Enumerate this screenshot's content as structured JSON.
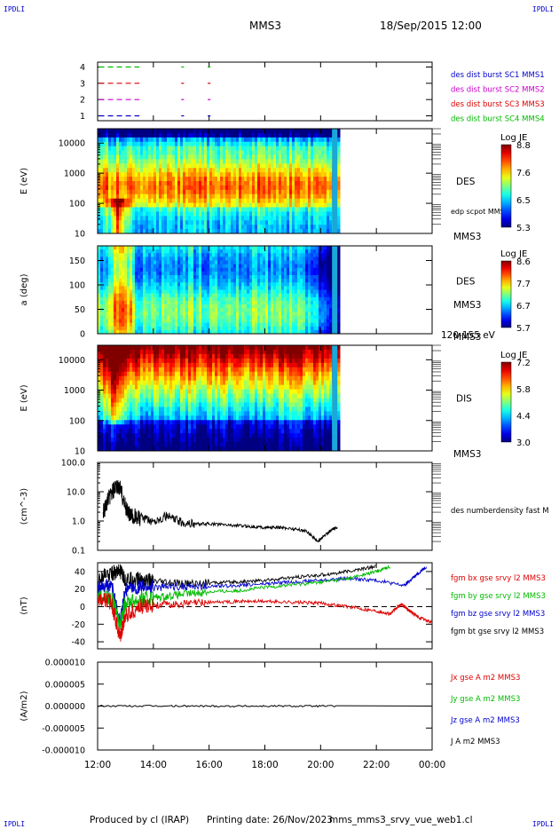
{
  "header": {
    "corner_label": "IPDLI",
    "spacecraft": "MMS3",
    "datetime": "18/Sep/2015 12:00"
  },
  "footer": {
    "produced_by": "Produced by cl (IRAP)",
    "printing_date": "Printing date: 26/Nov/2023",
    "file_name": "mms_mms3_srvy_vue_web1.cl"
  },
  "x_axis": {
    "ticks": [
      "12:00",
      "14:00",
      "16:00",
      "18:00",
      "20:00",
      "22:00",
      "00:00"
    ],
    "range_hours": [
      12,
      24
    ]
  },
  "chart_data": [
    {
      "type": "line",
      "id": "burst",
      "yticks": [
        "4",
        "3",
        "2",
        "1"
      ],
      "ylim": [
        0.7,
        4.3
      ],
      "legend": [
        {
          "label": "des dist burst SC1 MMS1",
          "color": "#0000cc"
        },
        {
          "label": "des dist burst SC2 MMS2",
          "color": "#cc00cc"
        },
        {
          "label": "des dist burst SC3 MMS3",
          "color": "#dd0000"
        },
        {
          "label": "des dist burst SC4 MMS4",
          "color": "#00bb00"
        }
      ],
      "series": [
        {
          "level": 4,
          "color": "#00bb00",
          "intervals": [
            [
              12.05,
              13.5
            ],
            [
              15.0,
              15.1
            ],
            [
              15.95,
              16.05
            ]
          ]
        },
        {
          "level": 3,
          "color": "#dd0000",
          "intervals": [
            [
              12.05,
              13.5
            ],
            [
              15.0,
              15.1
            ],
            [
              15.95,
              16.05
            ]
          ]
        },
        {
          "level": 2,
          "color": "#cc00cc",
          "intervals": [
            [
              12.05,
              13.5
            ],
            [
              15.0,
              15.1
            ],
            [
              15.95,
              16.05
            ]
          ]
        },
        {
          "level": 1,
          "color": "#0000cc",
          "intervals": [
            [
              12.05,
              13.5
            ],
            [
              15.0,
              15.1
            ],
            [
              15.95,
              16.05
            ]
          ]
        }
      ]
    },
    {
      "type": "heatmap",
      "id": "des_energy",
      "ylabel": "E (eV)",
      "yscale": "log",
      "ylim": [
        10,
        30000
      ],
      "yticks": [
        "10000",
        "1000",
        "100",
        "10"
      ],
      "ytick_values": [
        10000,
        1000,
        100,
        10
      ],
      "species": "DES",
      "right_label": "MMS3",
      "overlay_label": "edp scpot MMS3",
      "colorbar": {
        "title": "Log JE",
        "min": 5.3,
        "max": 8.8,
        "ticks": [
          "8.8",
          "7.6",
          "6.5",
          "5.3"
        ]
      },
      "data_end_hour": 20.6
    },
    {
      "type": "heatmap",
      "id": "des_pitch",
      "ylabel": "a (deg)",
      "ylim": [
        0,
        180
      ],
      "yticks": [
        "150",
        "100",
        "50",
        "0"
      ],
      "ytick_values": [
        150,
        100,
        50,
        0
      ],
      "species": "DES",
      "right_label": "MMS3",
      "energy_range": "120-155 eV",
      "colorbar": {
        "title": "Log JE",
        "min": 5.7,
        "max": 8.6,
        "ticks": [
          "8.6",
          "7.7",
          "6.7",
          "5.7"
        ]
      },
      "data_end_hour": 20.6
    },
    {
      "type": "heatmap",
      "id": "dis_energy",
      "ylabel": "E (eV)",
      "yscale": "log",
      "ylim": [
        10,
        30000
      ],
      "yticks": [
        "10000",
        "1000",
        "100",
        "10"
      ],
      "ytick_values": [
        10000,
        1000,
        100,
        10
      ],
      "species": "DIS",
      "right_label": "MMS3",
      "colorbar": {
        "title": "Log JE",
        "min": 3.0,
        "max": 7.2,
        "ticks": [
          "7.2",
          "5.8",
          "4.4",
          "3.0"
        ]
      },
      "data_end_hour": 20.6
    },
    {
      "type": "line",
      "id": "density",
      "ylabel": "(cm^-3)",
      "yscale": "log",
      "ylim": [
        0.1,
        100
      ],
      "yticks": [
        "100.0",
        "10.0",
        "1.0",
        "0.1"
      ],
      "ytick_values": [
        100,
        10,
        1,
        0.1
      ],
      "legend": [
        {
          "label": "des numberdensity fast M",
          "color": "#000000"
        }
      ],
      "series": [
        {
          "name": "des numberdensity fast M",
          "color": "#000000",
          "x": [
            12.2,
            12.4,
            12.6,
            12.8,
            13.0,
            13.2,
            13.5,
            14.0,
            14.5,
            15.0,
            15.5,
            16.0,
            16.5,
            17.0,
            17.5,
            18.0,
            18.5,
            19.0,
            19.5,
            19.9,
            20.1,
            20.4,
            20.6
          ],
          "y": [
            2.0,
            6.0,
            12.0,
            14.0,
            3.0,
            1.5,
            1.2,
            1.0,
            1.5,
            0.9,
            0.8,
            0.8,
            0.75,
            0.7,
            0.65,
            0.6,
            0.6,
            0.55,
            0.45,
            0.2,
            0.3,
            0.5,
            0.6
          ]
        }
      ]
    },
    {
      "type": "line",
      "id": "fgm",
      "ylabel": "(nT)",
      "ylim": [
        -48,
        50
      ],
      "yticks": [
        "40",
        "20",
        "0",
        "-20",
        "-40"
      ],
      "ytick_values": [
        40,
        20,
        0,
        -20,
        -40
      ],
      "zero_line": true,
      "legend": [
        {
          "label": "fgm bx gse srvy l2 MMS3",
          "color": "#dd0000"
        },
        {
          "label": "fgm by gse srvy l2 MMS3",
          "color": "#00bb00"
        },
        {
          "label": "fgm bz gse srvy l2 MMS3",
          "color": "#0000cc"
        },
        {
          "label": "fgm bt gse srvy l2 MMS3",
          "color": "#000000"
        }
      ],
      "series": [
        {
          "name": "bx",
          "color": "#dd0000",
          "x": [
            12.0,
            12.5,
            12.8,
            13.0,
            13.5,
            14.0,
            15.0,
            16.0,
            17.0,
            18.0,
            19.0,
            20.0,
            21.0,
            22.0,
            22.5,
            22.9,
            23.2,
            23.5,
            24.0
          ],
          "y": [
            10,
            5,
            -35,
            -10,
            0,
            2,
            3,
            5,
            6,
            6,
            5,
            4,
            0,
            -5,
            -8,
            3,
            -5,
            -12,
            -18
          ]
        },
        {
          "name": "by",
          "color": "#00bb00",
          "x": [
            12.0,
            12.5,
            12.8,
            13.0,
            13.5,
            14.0,
            15.0,
            16.0,
            17.0,
            18.0,
            19.0,
            20.0,
            21.0,
            22.0,
            22.5
          ],
          "y": [
            12,
            10,
            -20,
            5,
            8,
            10,
            14,
            17,
            18,
            22,
            25,
            28,
            32,
            40,
            46
          ]
        },
        {
          "name": "bz",
          "color": "#0000cc",
          "x": [
            12.0,
            12.5,
            12.8,
            13.0,
            13.5,
            14.0,
            15.0,
            16.0,
            17.0,
            18.0,
            19.0,
            20.0,
            21.0,
            22.0,
            23.0,
            23.4,
            23.8
          ],
          "y": [
            20,
            25,
            -20,
            20,
            22,
            22,
            23,
            23,
            24,
            26,
            28,
            30,
            32,
            30,
            24,
            35,
            46
          ]
        },
        {
          "name": "bt",
          "color": "#000000",
          "x": [
            12.0,
            12.5,
            12.8,
            13.0,
            13.5,
            14.0,
            15.0,
            16.0,
            17.0,
            18.0,
            19.0,
            20.0,
            21.0,
            22.0
          ],
          "y": [
            32,
            38,
            40,
            30,
            32,
            28,
            26,
            27,
            28,
            30,
            33,
            36,
            40,
            46
          ]
        }
      ]
    },
    {
      "type": "line",
      "id": "current",
      "ylabel": "(A/m2)",
      "ylim": [
        -1e-05,
        1e-05
      ],
      "yticks": [
        "0.000010",
        "0.000005",
        "0.000000",
        "-0.000005",
        "-0.000010"
      ],
      "ytick_values": [
        1e-05,
        5e-06,
        0,
        -5e-06,
        -1e-05
      ],
      "legend": [
        {
          "label": "Jx gse A m2 MMS3",
          "color": "#dd0000"
        },
        {
          "label": "Jy gse A m2 MMS3",
          "color": "#00bb00"
        },
        {
          "label": "Jz gse A m2 MMS3",
          "color": "#0000cc"
        },
        {
          "label": "J A m2 MMS3",
          "color": "#000000"
        }
      ],
      "series": [
        {
          "name": "J",
          "color": "#000000",
          "x": [
            12.0,
            24.0
          ],
          "y": [
            0,
            0
          ]
        }
      ]
    }
  ]
}
